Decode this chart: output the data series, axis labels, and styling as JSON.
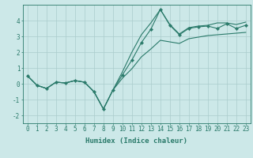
{
  "xlabel": "Humidex (Indice chaleur)",
  "background_color": "#cce8e8",
  "grid_color": "#aacccc",
  "line_color": "#2a7a6a",
  "x": [
    0,
    1,
    2,
    3,
    4,
    5,
    6,
    7,
    8,
    9,
    10,
    11,
    12,
    13,
    14,
    15,
    16,
    17,
    18,
    19,
    20,
    21,
    22,
    23
  ],
  "y_main": [
    0.5,
    -0.1,
    -0.3,
    0.1,
    0.05,
    0.2,
    0.1,
    -0.5,
    -1.6,
    -0.4,
    0.55,
    1.5,
    2.6,
    3.45,
    4.7,
    3.7,
    3.1,
    3.5,
    3.6,
    3.65,
    3.5,
    3.8,
    3.5,
    3.7
  ],
  "y_low": [
    0.5,
    -0.1,
    -0.3,
    0.1,
    0.05,
    0.2,
    0.1,
    -0.5,
    -1.6,
    -0.4,
    0.35,
    0.95,
    1.7,
    2.2,
    2.75,
    2.65,
    2.55,
    2.85,
    2.95,
    3.05,
    3.1,
    3.15,
    3.2,
    3.25
  ],
  "y_high": [
    0.5,
    -0.1,
    -0.3,
    0.1,
    0.05,
    0.2,
    0.1,
    -0.5,
    -1.6,
    -0.4,
    0.75,
    2.0,
    3.1,
    3.85,
    4.7,
    3.75,
    3.15,
    3.55,
    3.65,
    3.7,
    3.85,
    3.85,
    3.75,
    3.9
  ],
  "ylim": [
    -2.5,
    5.0
  ],
  "yticks": [
    -2,
    -1,
    0,
    1,
    2,
    3,
    4
  ],
  "xticks": [
    0,
    1,
    2,
    3,
    4,
    5,
    6,
    7,
    8,
    9,
    10,
    11,
    12,
    13,
    14,
    15,
    16,
    17,
    18,
    19,
    20,
    21,
    22,
    23
  ],
  "tick_fontsize": 5.5,
  "label_fontsize": 6.5
}
